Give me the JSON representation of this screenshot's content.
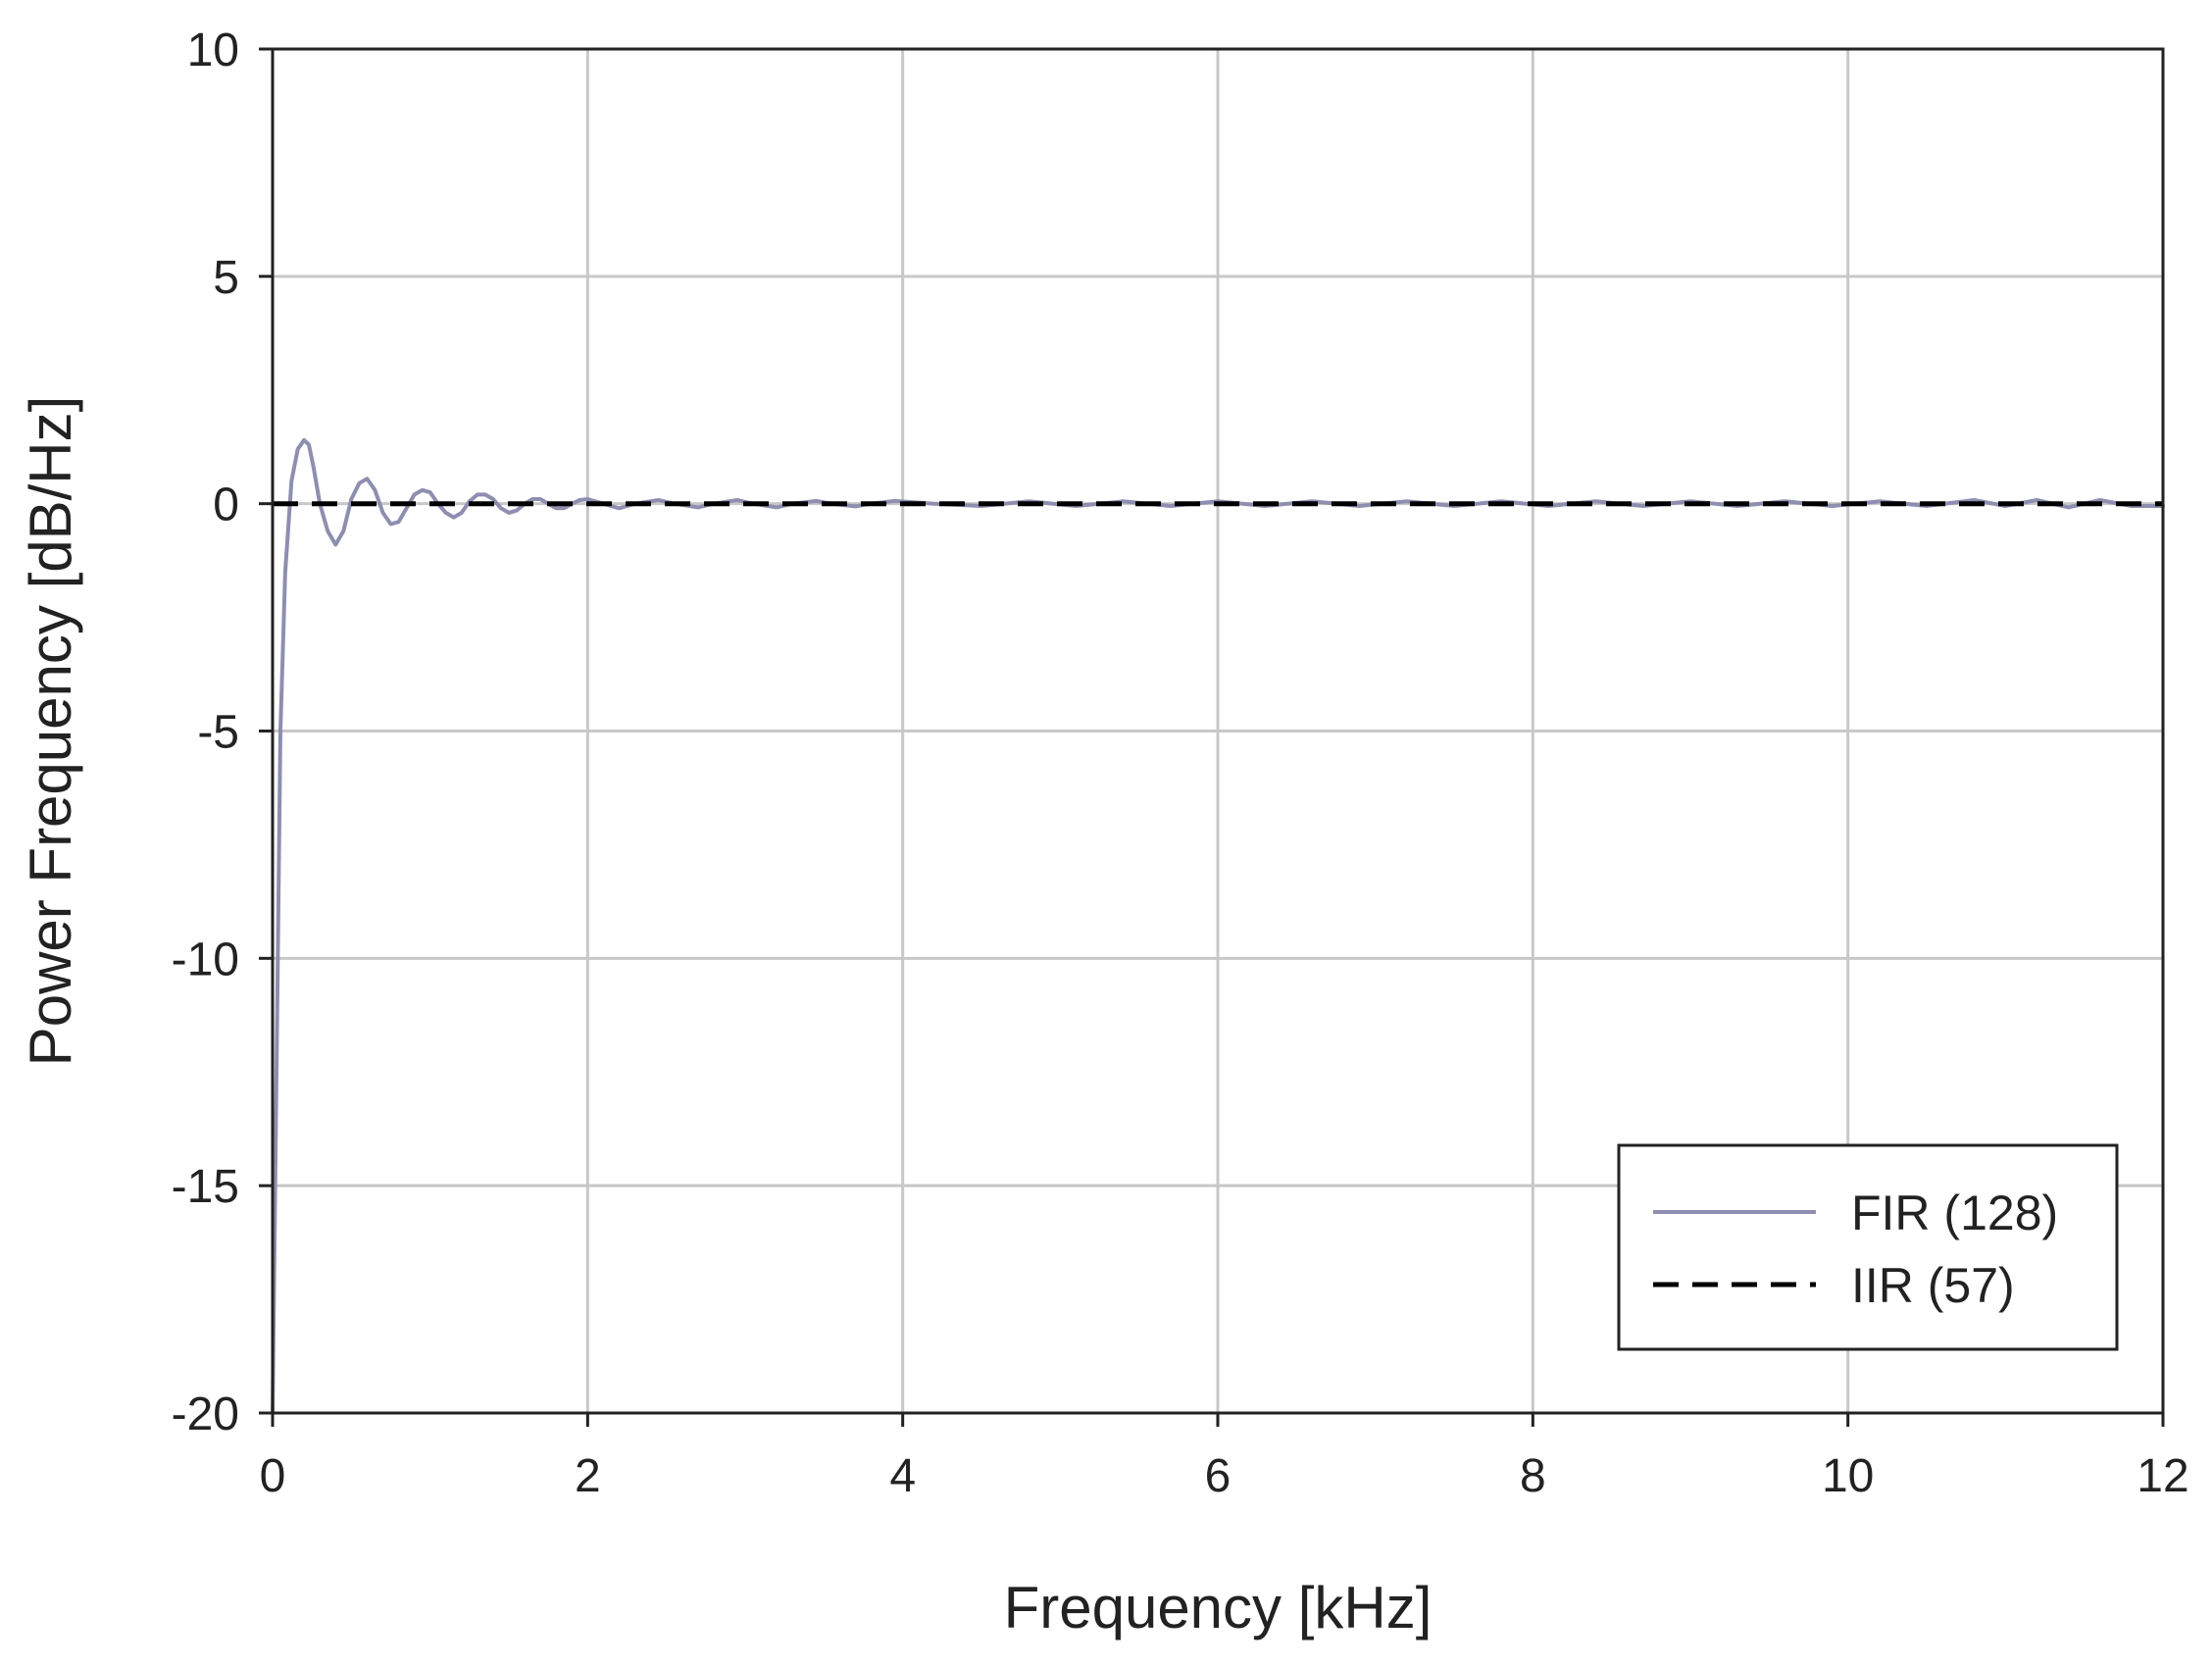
{
  "chart_data": {
    "type": "line",
    "title": "",
    "xlabel": "Frequency [kHz]",
    "ylabel": "Power Frequency [dB/Hz]",
    "xlim": [
      0,
      12
    ],
    "ylim": [
      -20,
      10
    ],
    "xticks": [
      "0",
      "2",
      "4",
      "6",
      "8",
      "10",
      "12"
    ],
    "yticks": [
      "10",
      "5",
      "0",
      "-5",
      "-10",
      "-15",
      "-20"
    ],
    "grid": true,
    "legend_position": "bottom-right",
    "series": [
      {
        "name": "FIR (128)",
        "color": "#8e8eb0",
        "dash": "solid",
        "x": [
          0.0,
          0.02,
          0.05,
          0.08,
          0.12,
          0.16,
          0.2,
          0.23,
          0.26,
          0.3,
          0.35,
          0.4,
          0.45,
          0.5,
          0.55,
          0.6,
          0.65,
          0.7,
          0.75,
          0.8,
          0.85,
          0.9,
          0.95,
          1.0,
          1.05,
          1.1,
          1.15,
          1.2,
          1.25,
          1.3,
          1.35,
          1.4,
          1.45,
          1.5,
          1.55,
          1.6,
          1.65,
          1.7,
          1.75,
          1.8,
          1.85,
          1.9,
          1.95,
          2.0,
          2.1,
          2.2,
          2.3,
          2.45,
          2.55,
          2.7,
          2.8,
          2.95,
          3.05,
          3.2,
          3.3,
          3.45,
          3.55,
          3.7,
          3.8,
          3.95,
          4.2,
          4.5,
          4.8,
          5.1,
          5.4,
          5.7,
          6.0,
          6.3,
          6.6,
          6.9,
          7.2,
          7.5,
          7.8,
          8.1,
          8.4,
          8.7,
          9.0,
          9.3,
          9.6,
          9.9,
          10.2,
          10.5,
          10.8,
          11.0,
          11.2,
          11.4,
          11.6,
          11.8,
          12.0
        ],
        "y": [
          -20,
          -14,
          -5,
          -1.5,
          0.5,
          1.2,
          1.4,
          1.3,
          0.8,
          0.0,
          -0.6,
          -0.9,
          -0.6,
          0.1,
          0.45,
          0.55,
          0.3,
          -0.2,
          -0.45,
          -0.4,
          -0.1,
          0.2,
          0.3,
          0.25,
          0.0,
          -0.2,
          -0.3,
          -0.2,
          0.05,
          0.2,
          0.2,
          0.1,
          -0.1,
          -0.2,
          -0.15,
          0.0,
          0.1,
          0.1,
          0.0,
          -0.1,
          -0.1,
          0.0,
          0.08,
          0.1,
          0.0,
          -0.1,
          0.0,
          0.08,
          0.0,
          -0.08,
          0.0,
          0.08,
          0.0,
          -0.08,
          0.0,
          0.06,
          0.0,
          -0.06,
          0.0,
          0.06,
          0.0,
          -0.05,
          0.05,
          -0.05,
          0.05,
          -0.05,
          0.05,
          -0.05,
          0.05,
          -0.05,
          0.05,
          -0.05,
          0.05,
          -0.05,
          0.05,
          -0.05,
          0.05,
          -0.05,
          0.05,
          -0.05,
          0.05,
          -0.05,
          0.08,
          -0.05,
          0.08,
          -0.08,
          0.08,
          -0.05,
          -0.05
        ]
      },
      {
        "name": "IIR (57)",
        "color": "#000000",
        "dash": "dashed",
        "x": [
          0.0,
          12.0
        ],
        "y": [
          0.0,
          0.0
        ]
      }
    ]
  }
}
